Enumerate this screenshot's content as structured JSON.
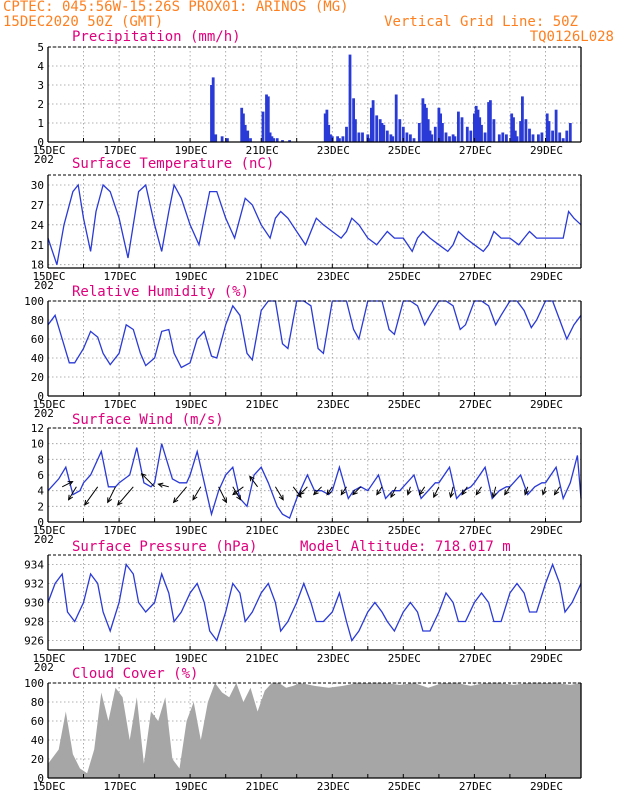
{
  "header": {
    "line1": "CPTEC:  045:56W-15:26S  PROX01: ARINOS (MG)",
    "line2": "15DEC2020 50Z (GMT)",
    "grid_note": "Vertical Grid Line: 50Z",
    "code": "TQ0126L028"
  },
  "colors": {
    "header": "#ff7f1f",
    "panel_title": "#e0007e",
    "line": "#2a3ad6",
    "bar": "#2a3ad6",
    "cloud": "#a6a6a6",
    "arrow": "#000000",
    "grid": "#999999"
  },
  "x_axis": {
    "labels": [
      "15DEC",
      "17DEC",
      "19DEC",
      "21DEC",
      "23DEC",
      "25DEC",
      "27DEC",
      "29DEC"
    ],
    "label_days": [
      0,
      2,
      4,
      6,
      8,
      10,
      12,
      14
    ],
    "clipped_year_fragment": "202",
    "days_span": 15
  },
  "chart_data": [
    {
      "type": "bar",
      "title": "Precipitation (mm/h)",
      "ylim": [
        0,
        5
      ],
      "yticks": [
        "0",
        "1",
        "2",
        "3",
        "4",
        "5"
      ],
      "x_unit": "days since 15DEC",
      "x": [
        4.6,
        4.65,
        4.72,
        4.9,
        5.05,
        5.45,
        5.5,
        5.55,
        5.62,
        5.7,
        6.05,
        6.15,
        6.2,
        6.25,
        6.3,
        6.35,
        6.45,
        6.6,
        6.8,
        7.8,
        7.85,
        7.9,
        7.95,
        8.0,
        8.15,
        8.2,
        8.3,
        8.4,
        8.5,
        8.6,
        8.65,
        8.75,
        8.85,
        9.0,
        9.05,
        9.1,
        9.15,
        9.25,
        9.35,
        9.4,
        9.45,
        9.55,
        9.65,
        9.7,
        9.8,
        9.9,
        10.0,
        10.1,
        10.2,
        10.3,
        10.45,
        10.55,
        10.6,
        10.65,
        10.7,
        10.75,
        10.8,
        10.9,
        11.0,
        11.05,
        11.1,
        11.2,
        11.3,
        11.4,
        11.45,
        11.55,
        11.65,
        11.8,
        11.9,
        12.0,
        12.05,
        12.1,
        12.15,
        12.2,
        12.3,
        12.4,
        12.45,
        12.55,
        12.7,
        12.8,
        12.9,
        13.05,
        13.1,
        13.15,
        13.2,
        13.3,
        13.35,
        13.45,
        13.55,
        13.65,
        13.8,
        13.9,
        14.05,
        14.1,
        14.2,
        14.3,
        14.4,
        14.5,
        14.6,
        14.7
      ],
      "values": [
        3.0,
        3.4,
        0.4,
        0.3,
        0.2,
        1.8,
        1.5,
        0.9,
        0.6,
        0.2,
        1.6,
        2.5,
        2.4,
        0.5,
        0.3,
        0.2,
        0.2,
        0.1,
        0.1,
        1.5,
        1.7,
        0.9,
        0.4,
        0.3,
        0.3,
        0.2,
        0.3,
        0.8,
        4.6,
        2.3,
        1.2,
        0.5,
        0.5,
        0.4,
        0.2,
        1.8,
        2.2,
        1.4,
        1.2,
        1.0,
        0.9,
        0.6,
        0.4,
        0.3,
        2.5,
        1.2,
        0.8,
        0.5,
        0.4,
        0.2,
        1.0,
        2.3,
        2.0,
        1.8,
        1.2,
        0.6,
        0.4,
        0.8,
        1.8,
        1.5,
        1.0,
        0.5,
        0.3,
        0.4,
        0.3,
        1.6,
        1.3,
        0.8,
        0.6,
        1.5,
        1.9,
        1.7,
        1.3,
        0.9,
        0.5,
        2.1,
        2.2,
        1.2,
        0.4,
        0.5,
        0.4,
        1.5,
        1.3,
        0.6,
        0.3,
        1.1,
        2.4,
        1.2,
        0.7,
        0.4,
        0.4,
        0.5,
        1.5,
        1.1,
        0.6,
        1.7,
        0.5,
        0.2,
        0.6,
        1.0
      ]
    },
    {
      "type": "line",
      "title": "Surface Temperature (nC)",
      "ylim": [
        17.5,
        31.5
      ],
      "yticks": [
        "18",
        "21",
        "24",
        "27",
        "30"
      ],
      "x_unit": "days since 15DEC",
      "x": [
        0,
        0.25,
        0.45,
        0.7,
        0.85,
        1.0,
        1.2,
        1.35,
        1.55,
        1.75,
        2.0,
        2.25,
        2.4,
        2.55,
        2.75,
        3.0,
        3.2,
        3.4,
        3.55,
        3.75,
        4.0,
        4.25,
        4.4,
        4.55,
        4.75,
        5.0,
        5.25,
        5.4,
        5.55,
        5.75,
        6.0,
        6.25,
        6.4,
        6.55,
        6.75,
        7.0,
        7.25,
        7.4,
        7.55,
        7.75,
        8.0,
        8.25,
        8.4,
        8.55,
        8.75,
        9.0,
        9.25,
        9.4,
        9.55,
        9.75,
        10.0,
        10.25,
        10.4,
        10.55,
        10.75,
        11.0,
        11.25,
        11.4,
        11.55,
        11.75,
        12.0,
        12.25,
        12.4,
        12.55,
        12.75,
        13.0,
        13.25,
        13.4,
        13.55,
        13.75,
        14.0,
        14.25,
        14.5,
        14.65,
        14.8,
        15.0
      ],
      "values": [
        22,
        18,
        24,
        29,
        30,
        25,
        20,
        26,
        30,
        29,
        25,
        19,
        24,
        29,
        30,
        24,
        20,
        26,
        30,
        28,
        24,
        21,
        25,
        29,
        29,
        25,
        22,
        25,
        28,
        27,
        24,
        22,
        25,
        26,
        25,
        23,
        21,
        23,
        25,
        24,
        23,
        22,
        23,
        25,
        24,
        22,
        21,
        22,
        23,
        22,
        22,
        20,
        22,
        23,
        22,
        21,
        20,
        21,
        23,
        22,
        21,
        20,
        21,
        23,
        22,
        22,
        21,
        22,
        23,
        22,
        22,
        22,
        22,
        26,
        25,
        24
      ]
    },
    {
      "type": "line",
      "title": "Relative Humidity (%)",
      "ylim": [
        0,
        100
      ],
      "yticks": [
        "0",
        "20",
        "40",
        "60",
        "80",
        "100"
      ],
      "x_unit": "days since 15DEC",
      "x": [
        0,
        0.2,
        0.4,
        0.6,
        0.75,
        1.0,
        1.2,
        1.4,
        1.55,
        1.75,
        2.0,
        2.2,
        2.4,
        2.6,
        2.75,
        3.0,
        3.2,
        3.4,
        3.55,
        3.75,
        4.0,
        4.2,
        4.4,
        4.6,
        4.75,
        5.0,
        5.2,
        5.4,
        5.6,
        5.75,
        6.0,
        6.2,
        6.4,
        6.6,
        6.75,
        7.0,
        7.2,
        7.4,
        7.6,
        7.75,
        8.0,
        8.2,
        8.4,
        8.6,
        8.75,
        9.0,
        9.2,
        9.4,
        9.6,
        9.75,
        10.0,
        10.2,
        10.4,
        10.6,
        10.75,
        11.0,
        11.2,
        11.4,
        11.6,
        11.75,
        12.0,
        12.2,
        12.4,
        12.6,
        12.75,
        13.0,
        13.2,
        13.4,
        13.6,
        13.75,
        14.0,
        14.2,
        14.4,
        14.6,
        14.8,
        15.0
      ],
      "values": [
        75,
        85,
        60,
        35,
        35,
        50,
        68,
        62,
        45,
        33,
        45,
        75,
        70,
        45,
        32,
        40,
        68,
        70,
        45,
        30,
        35,
        60,
        68,
        42,
        40,
        75,
        95,
        85,
        45,
        38,
        90,
        100,
        100,
        55,
        50,
        100,
        100,
        95,
        50,
        45,
        100,
        100,
        100,
        70,
        60,
        100,
        100,
        100,
        70,
        65,
        100,
        100,
        95,
        75,
        85,
        100,
        100,
        95,
        70,
        75,
        100,
        100,
        95,
        75,
        85,
        100,
        100,
        90,
        72,
        80,
        100,
        100,
        80,
        60,
        75,
        85
      ]
    },
    {
      "type": "line",
      "title": "Surface Wind (m/s)",
      "ylim": [
        0,
        12
      ],
      "yticks": [
        "0",
        "2",
        "4",
        "6",
        "8",
        "10",
        "12"
      ],
      "x_unit": "days since 15DEC",
      "x": [
        0,
        0.3,
        0.5,
        0.7,
        0.9,
        1.0,
        1.2,
        1.5,
        1.7,
        1.9,
        2.0,
        2.3,
        2.5,
        2.7,
        2.9,
        3.0,
        3.2,
        3.5,
        3.7,
        3.9,
        4.0,
        4.2,
        4.45,
        4.6,
        4.8,
        5.0,
        5.2,
        5.4,
        5.6,
        5.8,
        6.0,
        6.2,
        6.45,
        6.6,
        6.8,
        7.0,
        7.3,
        7.5,
        7.7,
        7.9,
        8.0,
        8.2,
        8.45,
        8.6,
        8.8,
        9.0,
        9.3,
        9.5,
        9.7,
        9.9,
        10.0,
        10.3,
        10.5,
        10.7,
        10.9,
        11.0,
        11.3,
        11.5,
        11.7,
        11.9,
        12.0,
        12.3,
        12.5,
        12.7,
        12.9,
        13.0,
        13.3,
        13.5,
        13.7,
        13.9,
        14.0,
        14.3,
        14.5,
        14.7,
        14.9,
        15.0
      ],
      "values": [
        4,
        5.5,
        7,
        3.5,
        4,
        5,
        6,
        9,
        4.5,
        4.5,
        5,
        6,
        9.5,
        5,
        4.5,
        5,
        10,
        5.5,
        5,
        5,
        6,
        9,
        4,
        1,
        4,
        6,
        7,
        3,
        2,
        6,
        7,
        5,
        2,
        1,
        0.5,
        3,
        6,
        4,
        4,
        3.5,
        4,
        7,
        3,
        4,
        4.5,
        4,
        6,
        3,
        4,
        4,
        4.5,
        6,
        3,
        4,
        5,
        5,
        7,
        3,
        4,
        4.5,
        5,
        7,
        3,
        4,
        4.5,
        4.5,
        6,
        3.5,
        4.5,
        5,
        5,
        7,
        3,
        5,
        8.5,
        3
      ]
    },
    {
      "type": "line",
      "title": "Surface Pressure (hPa)",
      "annotation": "Model Altitude: 718.017 m",
      "ylim": [
        925,
        935
      ],
      "yticks": [
        "926",
        "928",
        "930",
        "932",
        "934"
      ],
      "x_unit": "days since 15DEC",
      "x": [
        0,
        0.2,
        0.4,
        0.55,
        0.75,
        1.0,
        1.2,
        1.4,
        1.55,
        1.75,
        2.0,
        2.2,
        2.4,
        2.55,
        2.75,
        3.0,
        3.2,
        3.4,
        3.55,
        3.75,
        4.0,
        4.2,
        4.4,
        4.55,
        4.75,
        5.0,
        5.2,
        5.4,
        5.55,
        5.75,
        6.0,
        6.2,
        6.4,
        6.55,
        6.75,
        7.0,
        7.2,
        7.4,
        7.55,
        7.75,
        8.0,
        8.2,
        8.4,
        8.55,
        8.75,
        9.0,
        9.2,
        9.4,
        9.55,
        9.75,
        10.0,
        10.2,
        10.4,
        10.55,
        10.75,
        11.0,
        11.2,
        11.4,
        11.55,
        11.75,
        12.0,
        12.2,
        12.4,
        12.55,
        12.75,
        13.0,
        13.2,
        13.4,
        13.55,
        13.75,
        14.0,
        14.2,
        14.4,
        14.55,
        14.75,
        15.0
      ],
      "values": [
        930,
        932,
        933,
        929,
        928,
        930,
        933,
        932,
        929,
        927,
        930,
        934,
        933,
        930,
        929,
        930,
        933,
        931,
        928,
        929,
        931,
        932,
        930,
        927,
        926,
        929,
        932,
        931,
        928,
        929,
        931,
        932,
        930,
        927,
        928,
        930,
        932,
        930,
        928,
        928,
        929,
        931,
        928,
        926,
        927,
        929,
        930,
        929,
        928,
        927,
        929,
        930,
        929,
        927,
        927,
        929,
        931,
        930,
        928,
        928,
        930,
        931,
        930,
        928,
        928,
        931,
        932,
        931,
        929,
        929,
        932,
        934,
        932,
        929,
        930,
        932
      ]
    },
    {
      "type": "area",
      "title": "Cloud Cover (%)",
      "ylim": [
        0,
        100
      ],
      "yticks": [
        "0",
        "20",
        "40",
        "60",
        "80",
        "100"
      ],
      "x_unit": "days since 15DEC",
      "x": [
        0,
        0.3,
        0.5,
        0.7,
        0.9,
        1.1,
        1.3,
        1.5,
        1.7,
        1.9,
        2.1,
        2.3,
        2.5,
        2.7,
        2.9,
        3.1,
        3.3,
        3.5,
        3.7,
        3.9,
        4.1,
        4.3,
        4.5,
        4.7,
        4.9,
        5.1,
        5.3,
        5.5,
        5.7,
        5.9,
        6.1,
        6.3,
        6.5,
        6.7,
        6.9,
        7.1,
        7.5,
        7.9,
        8.3,
        8.7,
        9.1,
        9.5,
        9.9,
        10.3,
        10.7,
        11.1,
        11.5,
        11.9,
        12.3,
        12.7,
        13.1,
        13.5,
        13.9,
        14.3,
        14.7,
        15.0
      ],
      "values": [
        15,
        30,
        70,
        25,
        10,
        5,
        30,
        90,
        60,
        95,
        85,
        40,
        85,
        15,
        70,
        60,
        85,
        20,
        10,
        60,
        80,
        40,
        80,
        100,
        90,
        85,
        100,
        80,
        95,
        70,
        92,
        100,
        100,
        95,
        97,
        100,
        97,
        95,
        97,
        100,
        100,
        100,
        98,
        100,
        95,
        100,
        100,
        97,
        100,
        100,
        98,
        100,
        100,
        100,
        98,
        100
      ]
    }
  ],
  "panels": [
    {
      "title": "Precipitation (mm/h)",
      "extra": ""
    },
    {
      "title": "Surface Temperature (nC)",
      "extra": ""
    },
    {
      "title": "Relative Humidity (%)",
      "extra": ""
    },
    {
      "title": "Surface Wind (m/s)",
      "extra": ""
    },
    {
      "title": "Surface Pressure (hPa)",
      "extra": "Model Altitude: 718.017 m"
    },
    {
      "title": "Cloud Cover (%)",
      "extra": ""
    }
  ],
  "wind_vectors": {
    "x": [
      0.4,
      0.8,
      1.4,
      1.9,
      2.4,
      3.0,
      3.4,
      3.9,
      4.3,
      4.8,
      5.2,
      5.5,
      5.9,
      6.4,
      6.9,
      7.3,
      7.7,
      8.0,
      8.4,
      8.8,
      9.4,
      9.8,
      10.2,
      10.6,
      11.0,
      11.4,
      11.8,
      12.2,
      12.6,
      13.0,
      13.5,
      14.0,
      14.4
    ],
    "u": [
      4,
      -3,
      -5,
      -3,
      -6,
      -5,
      -4,
      -5,
      -3,
      3,
      3,
      -4,
      -3,
      3,
      3,
      -3,
      -3,
      -2,
      -2,
      -3,
      -2,
      -2,
      -1,
      -2,
      -2,
      -1,
      -2,
      -2,
      -1,
      -2,
      -1,
      -1,
      -2
    ],
    "v": [
      2,
      -5,
      -7,
      -6,
      -7,
      5,
      1,
      -6,
      -5,
      -6,
      -5,
      -3,
      4,
      -5,
      -4,
      -3,
      -3,
      -3,
      -3,
      -3,
      -3,
      -4,
      -3,
      -3,
      -4,
      -4,
      -3,
      -3,
      -4,
      -3,
      -3,
      -3,
      -3
    ]
  }
}
